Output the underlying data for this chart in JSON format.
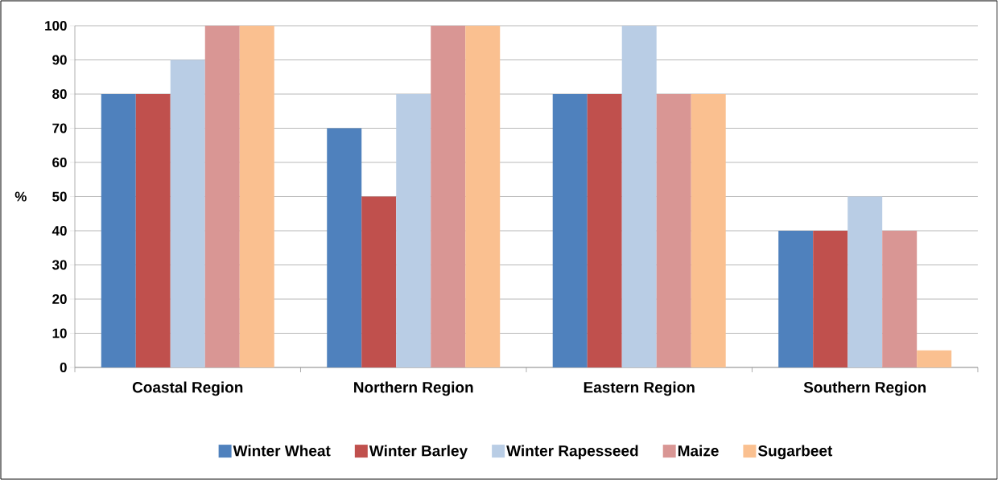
{
  "chart_data": {
    "type": "bar",
    "ylabel": "%",
    "categories": [
      "Coastal Region",
      "Northern Region",
      "Eastern Region",
      "Southern Region"
    ],
    "series": [
      {
        "name": "Winter Wheat",
        "color": "#4f81bd",
        "values": [
          80,
          70,
          80,
          40
        ]
      },
      {
        "name": "Winter Barley",
        "color": "#c0504d",
        "values": [
          80,
          50,
          80,
          40
        ]
      },
      {
        "name": "Winter Rapesseed",
        "color": "#b9cde5",
        "values": [
          90,
          80,
          100,
          50
        ]
      },
      {
        "name": "Maize",
        "color": "#d99694",
        "values": [
          100,
          100,
          80,
          40
        ]
      },
      {
        "name": "Sugarbeet",
        "color": "#fac090",
        "values": [
          100,
          100,
          80,
          5
        ]
      }
    ],
    "ylim": [
      0,
      100
    ],
    "yticks": [
      0,
      10,
      20,
      30,
      40,
      50,
      60,
      70,
      80,
      90,
      100
    ],
    "grid": "y",
    "legend": "bottom"
  }
}
